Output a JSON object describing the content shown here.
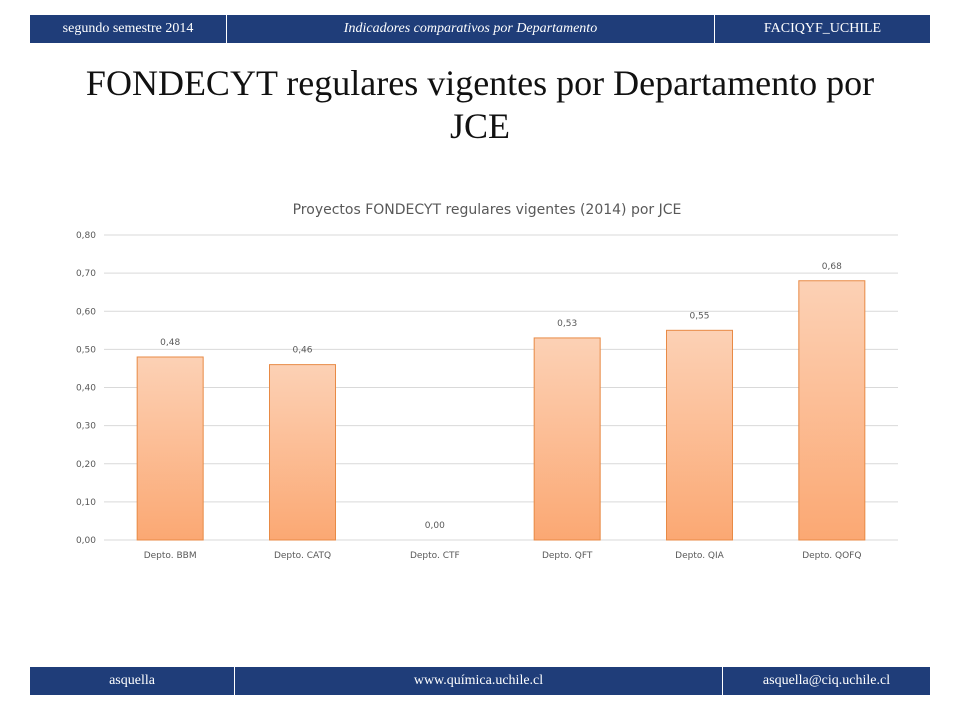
{
  "header": {
    "left": "segundo semestre 2014",
    "center": "Indicadores comparativos por Departamento",
    "right": "FACIQYF_UCHILE"
  },
  "slide_title": "FONDECYT regulares vigentes por Departamento por JCE",
  "footer": {
    "left": "asquella",
    "center": "www.química.uchile.cl",
    "right": "asquella@ciq.uchile.cl"
  },
  "colors": {
    "strip": "#1f3d79",
    "bar_fill_top": "#fcd1b5",
    "bar_fill_bottom": "#fba873",
    "bar_stroke": "#e88a45",
    "grid": "#d9d9d9"
  },
  "chart_data": {
    "type": "bar",
    "title": "Proyectos FONDECYT regulares vigentes (2014) por JCE",
    "categories": [
      "Depto. BBM",
      "Depto. CATQ",
      "Depto. CTF",
      "Depto. QFT",
      "Depto. QIA",
      "Depto. QOFQ"
    ],
    "values": [
      0.48,
      0.46,
      0.0,
      0.53,
      0.55,
      0.68
    ],
    "value_labels": [
      "0,48",
      "0,46",
      "0,00",
      "0,53",
      "0,55",
      "0,68"
    ],
    "yticks": [
      "0,00",
      "0,10",
      "0,20",
      "0,30",
      "0,40",
      "0,50",
      "0,60",
      "0,70",
      "0,80"
    ],
    "ylim": [
      0,
      0.8
    ],
    "grid": true,
    "legend": "none"
  }
}
